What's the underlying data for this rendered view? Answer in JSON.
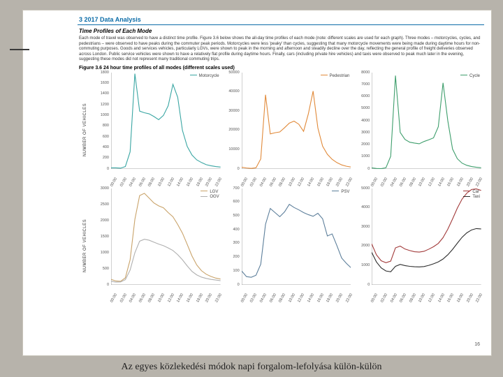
{
  "colors": {
    "bg": "#b7b3ab",
    "page": "#ffffff",
    "heading": "#0b6ca8",
    "grid": "#e0e0e0",
    "text": "#333333"
  },
  "section_title": "3 2017 Data Analysis",
  "subtitle": "Time Profiles of Each Mode",
  "body_text": "Each mode of travel was observed to have a distinct time profile. Figure 3.6 below shows the all-day time profiles of each mode (note: different scales are used for each graph). Three modes – motorcycles, cycles, and pedestrians – were observed to have peaks during the commuter peak periods. Motorcycles were less 'peaky' than cycles, suggesting that many motorcycle movements were being made during daytime hours for non-commuting purposes. Goods and services vehicles, particularly LGVs, were shown to peak in the morning and afternoon and steadily decline over the day, reflecting the general profile of freight deliveries observed across London. Public service vehicles were shown to have a relatively flat profile during daytime hours. Finally, cars (including private hire vehicles) and taxis were observed to peak much later in the evening, suggesting these modes did not represent many traditional commuting trips.",
  "figure_caption": "Figure 3.6 24 hour time profiles of all modes (different scales used)",
  "y_axis_label": "NUMBER OF VEHICLES",
  "x_ticks": [
    "00:00",
    "02:00",
    "04:00",
    "06:00",
    "08:00",
    "10:00",
    "12:00",
    "14:00",
    "16:00",
    "18:00",
    "20:00",
    "22:00"
  ],
  "page_number": "16",
  "caption_hu": "Az egyes közlekedési módok napi forgalom-lefolyása külön-külön",
  "panels": [
    {
      "id": "motorcycle",
      "series": [
        {
          "label": "Motorcycle",
          "color": "#3aa6a3"
        }
      ],
      "ymax": 1800,
      "ytick_step": 200,
      "data": [
        [
          20,
          20,
          15,
          45,
          320,
          1780,
          1080,
          1050,
          1030,
          980,
          920,
          1000,
          1180,
          1580,
          1340,
          720,
          420,
          260,
          170,
          120,
          80,
          60,
          45,
          35
        ]
      ]
    },
    {
      "id": "pedestrian",
      "series": [
        {
          "label": "Pedestrian",
          "color": "#e18a3a"
        }
      ],
      "ymax": 50000,
      "ytick_step": 10000,
      "data": [
        [
          900,
          500,
          300,
          600,
          5200,
          38500,
          18200,
          18800,
          19200,
          21400,
          23800,
          24800,
          23200,
          19500,
          28600,
          40400,
          21300,
          11800,
          7600,
          5000,
          3300,
          2100,
          1400,
          1000
        ]
      ]
    },
    {
      "id": "cycle",
      "series": [
        {
          "label": "Cycle",
          "color": "#3e9e6c"
        }
      ],
      "ymax": 8000,
      "ytick_step": 1000,
      "data": [
        [
          90,
          40,
          30,
          100,
          1050,
          7750,
          3030,
          2450,
          2220,
          2150,
          2090,
          2280,
          2420,
          2580,
          3500,
          7150,
          4000,
          1650,
          850,
          480,
          300,
          200,
          140,
          100
        ]
      ]
    },
    {
      "id": "lgv-ogv",
      "series": [
        {
          "label": "LGV",
          "color": "#c9a36a"
        },
        {
          "label": "OGV",
          "color": "#b0b0b0"
        }
      ],
      "ymax": 3000,
      "ytick_step": 500,
      "data": [
        [
          170,
          120,
          110,
          220,
          780,
          2040,
          2780,
          2850,
          2700,
          2550,
          2460,
          2400,
          2250,
          2120,
          1880,
          1610,
          1260,
          900,
          620,
          440,
          330,
          260,
          210,
          180
        ],
        [
          110,
          85,
          90,
          160,
          460,
          1000,
          1360,
          1420,
          1390,
          1330,
          1270,
          1220,
          1150,
          1070,
          940,
          780,
          590,
          420,
          310,
          240,
          200,
          170,
          150,
          130
        ]
      ]
    },
    {
      "id": "psv",
      "series": [
        {
          "label": "PSV",
          "color": "#5d7f9b"
        }
      ],
      "ymax": 700,
      "ytick_step": 100,
      "data": [
        [
          100,
          60,
          55,
          70,
          150,
          440,
          555,
          525,
          495,
          530,
          585,
          562,
          545,
          525,
          510,
          498,
          520,
          480,
          355,
          370,
          285,
          195,
          156,
          123
        ]
      ]
    },
    {
      "id": "car-taxi",
      "series": [
        {
          "label": "Car",
          "color": "#a23a3a"
        },
        {
          "label": "Taxi",
          "color": "#2e2e2e"
        }
      ],
      "ymax": 5000,
      "ytick_step": 1000,
      "data": [
        [
          2130,
          1560,
          1250,
          1150,
          1230,
          1920,
          2010,
          1860,
          1780,
          1720,
          1700,
          1740,
          1850,
          1980,
          2150,
          2450,
          2890,
          3420,
          3980,
          4450,
          4760,
          4950,
          4980,
          4900
        ],
        [
          1690,
          1190,
          880,
          720,
          680,
          960,
          1060,
          1000,
          960,
          940,
          930,
          950,
          1010,
          1090,
          1190,
          1340,
          1560,
          1840,
          2160,
          2470,
          2700,
          2850,
          2920,
          2900
        ]
      ]
    }
  ]
}
